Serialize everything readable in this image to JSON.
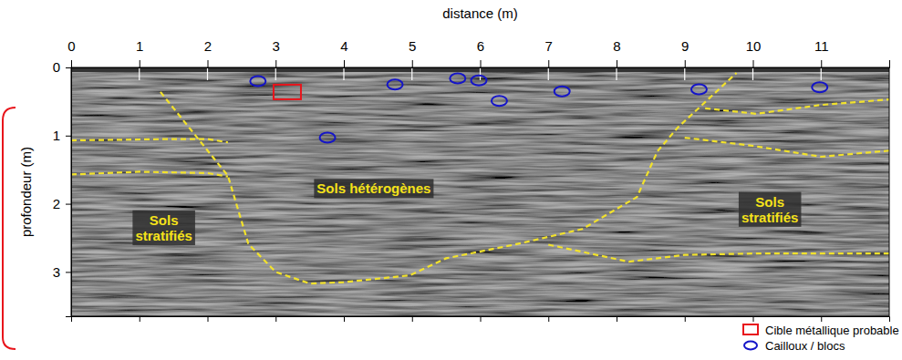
{
  "chart_data": {
    "type": "scatter",
    "x_label": "distance (m)",
    "y_label": "profondeur (m)",
    "xlim": [
      0,
      12
    ],
    "xticks": [
      0,
      1,
      2,
      3,
      4,
      5,
      6,
      7,
      8,
      9,
      10,
      11
    ],
    "ylim": [
      0,
      3.65
    ],
    "yticks": [
      0,
      1,
      2,
      3
    ],
    "legend": "bottom right",
    "series": [
      {
        "name": "Cible métallique probable",
        "color": "#e8141b",
        "marker": "square",
        "x": [
          3.17
        ],
        "values": [
          0.36
        ]
      },
      {
        "name": "Cailloux / blocs",
        "color": "#1414c8",
        "marker": "ellipse",
        "x": [
          2.74,
          3.76,
          4.75,
          5.67,
          5.98,
          6.28,
          7.2,
          9.21,
          10.98
        ],
        "values": [
          0.2,
          1.03,
          0.25,
          0.16,
          0.19,
          0.49,
          0.35,
          0.32,
          0.29
        ]
      }
    ],
    "lines": [
      {
        "color": "#f2e22c",
        "line_style": "dashed",
        "x": [
          0,
          1.5,
          2.0,
          2.3
        ],
        "values": [
          1.07,
          1.05,
          1.05,
          1.1
        ]
      },
      {
        "color": "#f2e22c",
        "line_style": "dashed",
        "x": [
          0,
          1.0,
          2.0,
          2.3
        ],
        "values": [
          1.57,
          1.53,
          1.55,
          1.6
        ]
      },
      {
        "color": "#f2e22c",
        "line_style": "dashed",
        "x": [
          1.31,
          2.3,
          2.6,
          3.0,
          3.5,
          4.0,
          4.97,
          5.5,
          6.5,
          7.5,
          8.3,
          8.6,
          8.9,
          9.76
        ],
        "values": [
          0.36,
          1.59,
          2.59,
          3.0,
          3.17,
          3.15,
          3.05,
          2.8,
          2.6,
          2.37,
          1.9,
          1.23,
          0.88,
          0.08
        ]
      },
      {
        "color": "#f2e22c",
        "line_style": "dashed",
        "x": [
          9.3,
          10.05,
          11.0,
          12.0
        ],
        "values": [
          0.6,
          0.68,
          0.55,
          0.47
        ]
      },
      {
        "color": "#f2e22c",
        "line_style": "dashed",
        "x": [
          9.0,
          10.0,
          11.0,
          12.0
        ],
        "values": [
          1.03,
          1.15,
          1.31,
          1.22
        ]
      },
      {
        "color": "#f2e22c",
        "line_style": "dashed",
        "x": [
          7.0,
          8.18,
          9.0,
          10.0,
          12.0
        ],
        "values": [
          2.6,
          2.85,
          2.75,
          2.73,
          2.73
        ]
      }
    ],
    "annotations": [
      {
        "text": "Sols stratifiés",
        "x": 1.36,
        "y": 2.35
      },
      {
        "text": "Sols hétérogènes",
        "x": 4.44,
        "y": 1.85
      },
      {
        "text": "Sols stratifiés",
        "x": 10.25,
        "y": 2.08
      }
    ]
  }
}
